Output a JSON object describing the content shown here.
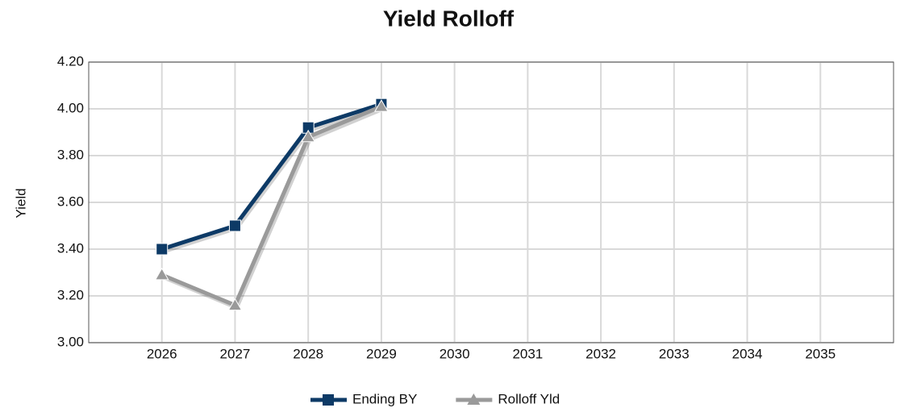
{
  "chart_data": {
    "type": "line",
    "title": "Yield Rolloff",
    "y_label": "Yield",
    "categories": [
      "2026",
      "2027",
      "2028",
      "2029",
      "2030",
      "2031",
      "2032",
      "2033",
      "2034",
      "2035"
    ],
    "series": [
      {
        "name": "Ending BY",
        "color": "#0d3a66",
        "marker": "square",
        "values": [
          3.4,
          3.5,
          3.92,
          4.02,
          null,
          null,
          null,
          null,
          null,
          null
        ]
      },
      {
        "name": "Rolloff Yld",
        "color": "#9a9a9a",
        "marker": "triangle",
        "values": [
          3.29,
          3.16,
          3.88,
          4.01,
          null,
          null,
          null,
          null,
          null,
          null
        ]
      }
    ],
    "ylim": [
      3,
      4.2
    ],
    "yticks": [
      {
        "value": 3,
        "label": "3.00"
      },
      {
        "value": 3.2,
        "label": "3.20"
      },
      {
        "value": 3.4,
        "label": "3.40"
      },
      {
        "value": 3.6,
        "label": "3.60"
      },
      {
        "value": 3.8,
        "label": "3.80"
      },
      {
        "value": 4,
        "label": "4.00"
      },
      {
        "value": 4.2,
        "label": "4.20"
      }
    ],
    "grid": true,
    "legend": "bottom"
  }
}
